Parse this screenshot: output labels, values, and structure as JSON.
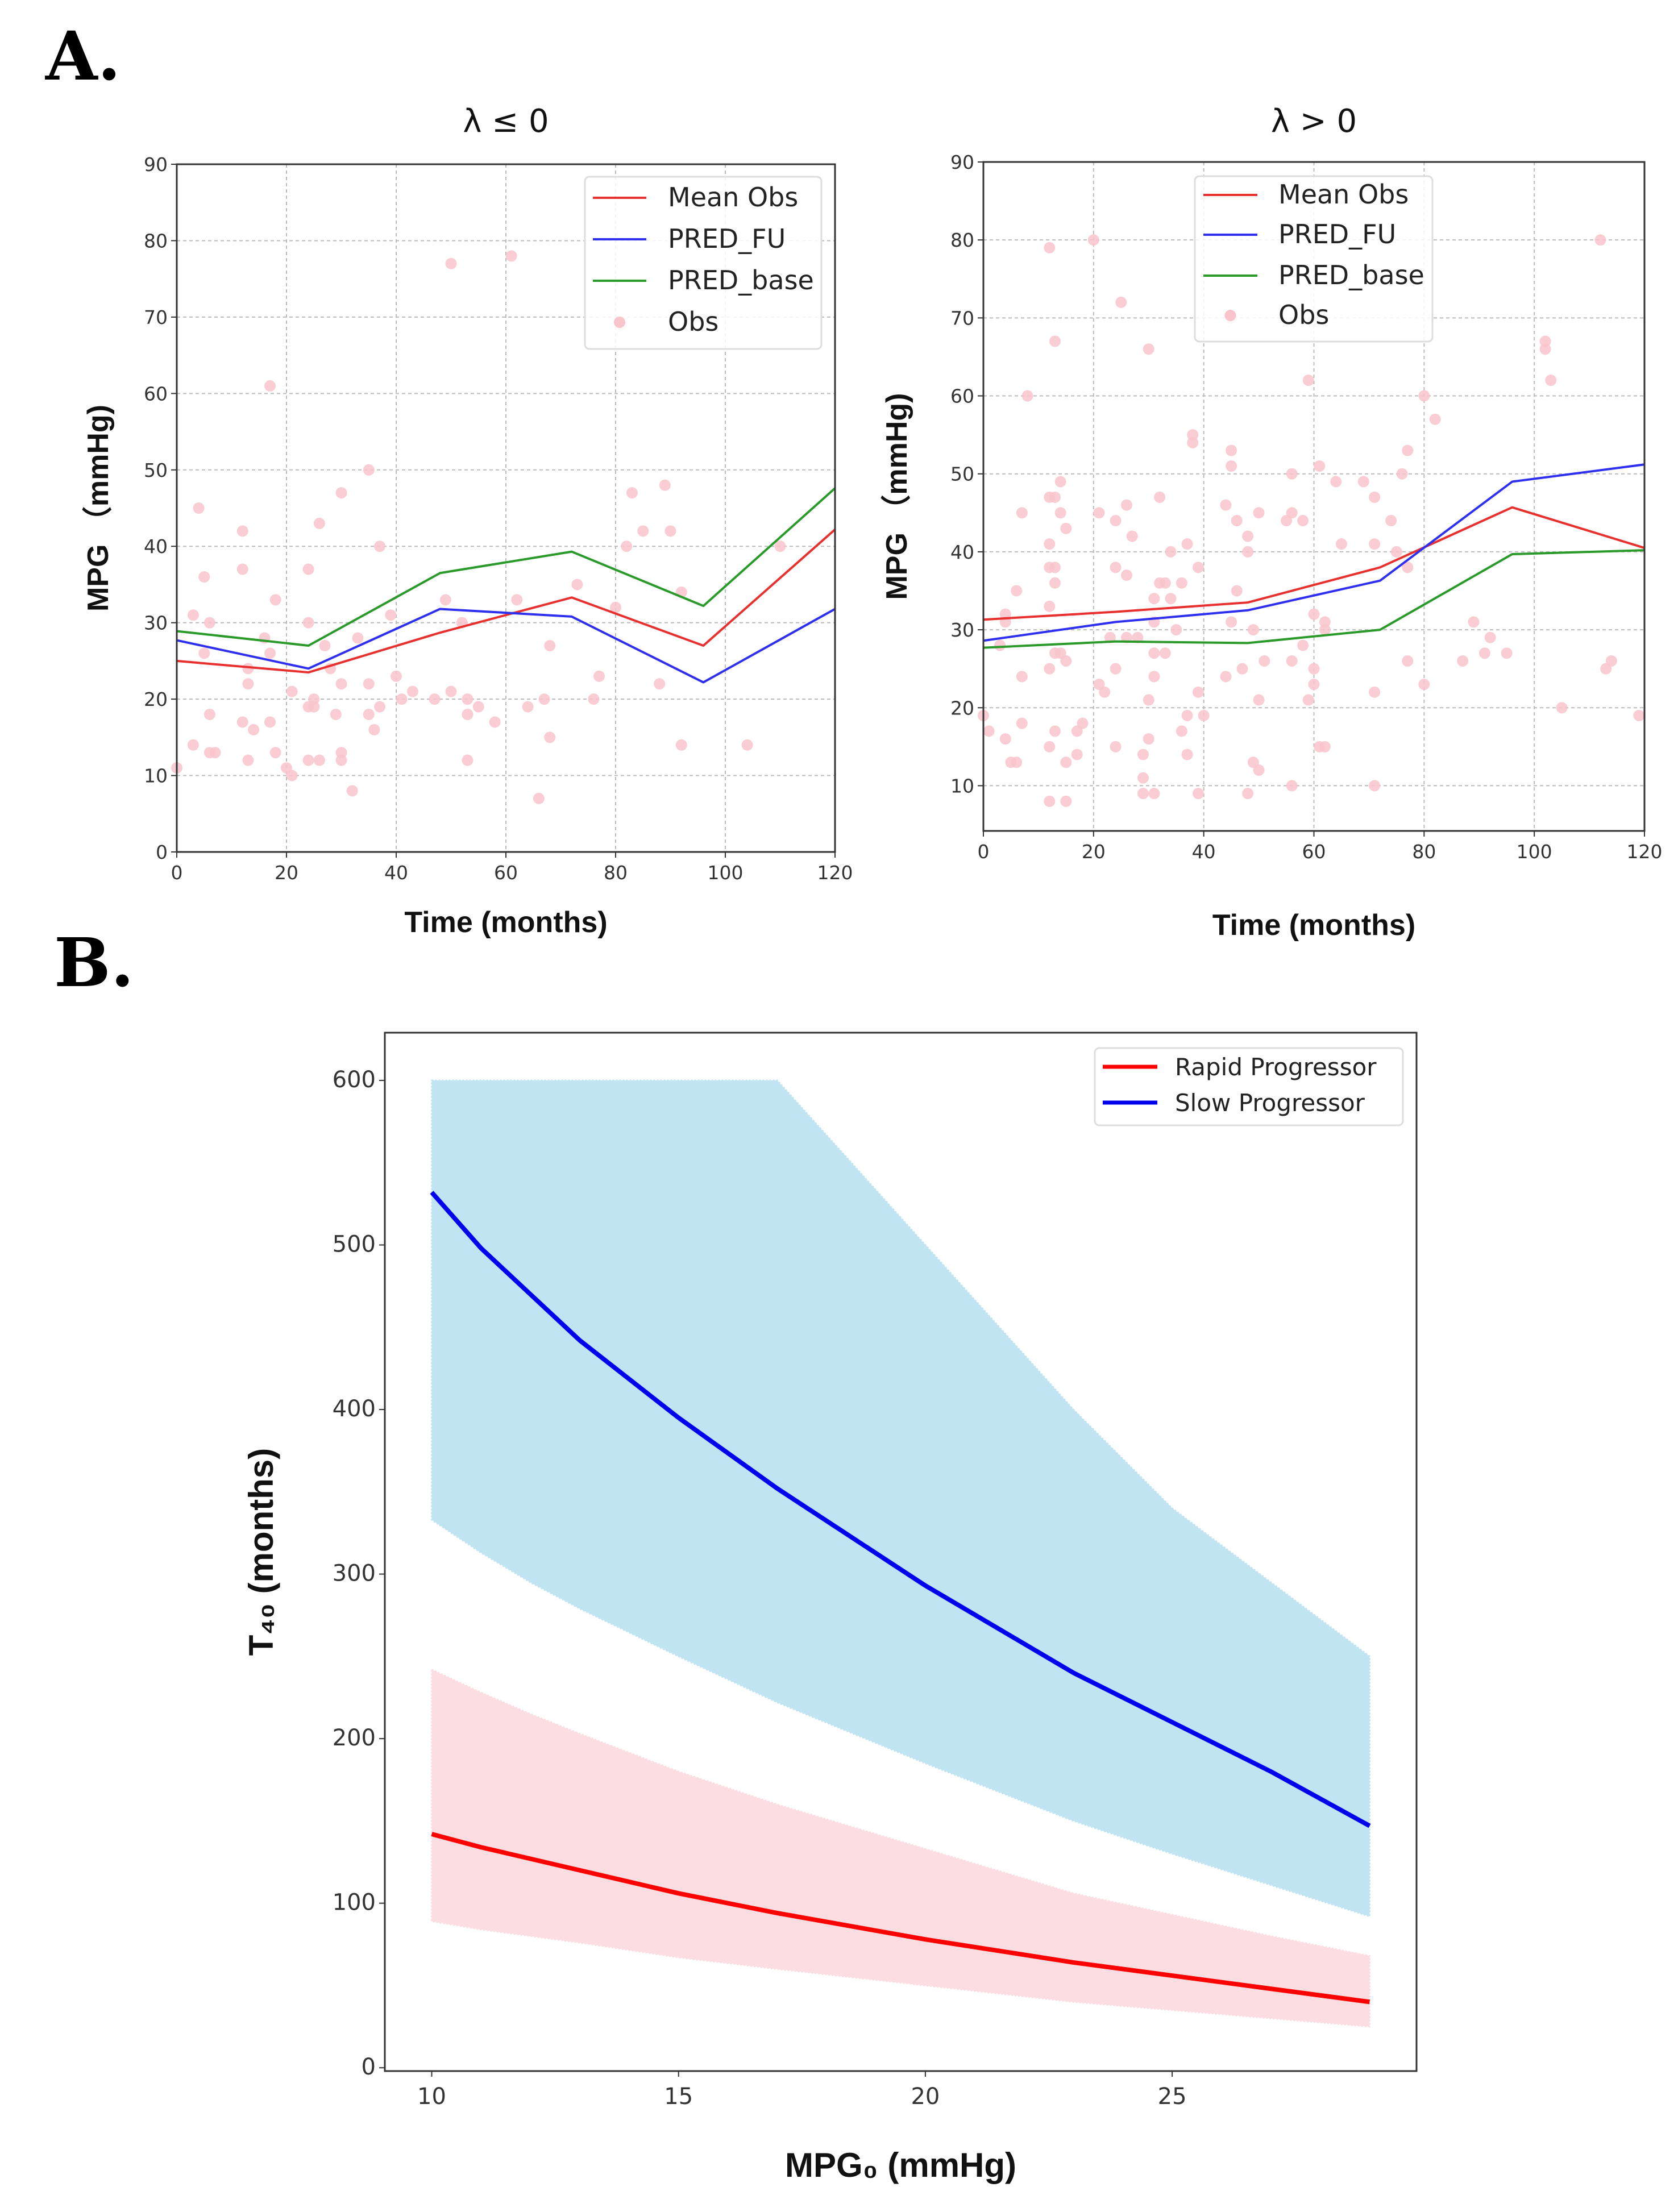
{
  "panel_labels": {
    "a": "A.",
    "b": "B."
  },
  "chart_data": [
    {
      "id": "a-left",
      "type": "line",
      "title": "λ ≤ 0",
      "xlabel": "Time (months)",
      "ylabel": "MPG （mmHg)",
      "xlim": [
        0,
        120
      ],
      "ylim": [
        0,
        90
      ],
      "xticks": [
        0,
        20,
        40,
        60,
        80,
        100,
        120
      ],
      "yticks": [
        0,
        10,
        20,
        30,
        40,
        50,
        60,
        70,
        80,
        90
      ],
      "grid": true,
      "legend_position": "top-right",
      "x": [
        0,
        24,
        48,
        72,
        96,
        120
      ],
      "series": [
        {
          "name": "Mean Obs",
          "color": "#e8312f",
          "values": [
            25,
            23.5,
            28.7,
            33.3,
            27,
            42.2
          ]
        },
        {
          "name": "PRED_FU",
          "color": "#2f2ff0",
          "values": [
            27.7,
            24,
            31.8,
            30.8,
            22.2,
            31.8
          ]
        },
        {
          "name": "PRED_base",
          "color": "#2a9a2a",
          "values": [
            28.9,
            27,
            36.5,
            39.3,
            32.2,
            47.6
          ]
        }
      ],
      "scatter": {
        "name": "Obs",
        "color": "#f9c4cc",
        "points": [
          [
            0,
            11
          ],
          [
            3,
            31
          ],
          [
            3,
            14
          ],
          [
            4,
            45
          ],
          [
            5,
            36
          ],
          [
            5,
            26
          ],
          [
            6,
            30
          ],
          [
            6,
            18
          ],
          [
            6,
            13
          ],
          [
            7,
            13
          ],
          [
            12,
            42
          ],
          [
            12,
            37
          ],
          [
            12,
            17
          ],
          [
            13,
            22
          ],
          [
            13,
            12
          ],
          [
            13,
            24
          ],
          [
            14,
            16
          ],
          [
            16,
            28
          ],
          [
            17,
            26
          ],
          [
            17,
            17
          ],
          [
            17,
            61
          ],
          [
            18,
            33
          ],
          [
            18,
            13
          ],
          [
            20,
            11
          ],
          [
            21,
            21
          ],
          [
            21,
            10
          ],
          [
            24,
            37
          ],
          [
            24,
            30
          ],
          [
            24,
            19
          ],
          [
            24,
            12
          ],
          [
            25,
            20
          ],
          [
            25,
            19
          ],
          [
            26,
            12
          ],
          [
            26,
            43
          ],
          [
            27,
            27
          ],
          [
            28,
            24
          ],
          [
            30,
            47
          ],
          [
            30,
            22
          ],
          [
            30,
            13
          ],
          [
            30,
            12
          ],
          [
            29,
            18
          ],
          [
            32,
            8
          ],
          [
            33,
            28
          ],
          [
            35,
            50
          ],
          [
            35,
            22
          ],
          [
            35,
            18
          ],
          [
            36,
            16
          ],
          [
            37,
            19
          ],
          [
            37,
            40
          ],
          [
            39,
            31
          ],
          [
            40,
            23
          ],
          [
            41,
            20
          ],
          [
            43,
            21
          ],
          [
            47,
            20
          ],
          [
            49,
            33
          ],
          [
            50,
            77
          ],
          [
            50,
            21
          ],
          [
            52,
            30
          ],
          [
            53,
            20
          ],
          [
            53,
            18
          ],
          [
            53,
            12
          ],
          [
            55,
            19
          ],
          [
            58,
            17
          ],
          [
            61,
            78
          ],
          [
            62,
            33
          ],
          [
            64,
            19
          ],
          [
            66,
            7
          ],
          [
            67,
            20
          ],
          [
            68,
            27
          ],
          [
            68,
            15
          ],
          [
            73,
            35
          ],
          [
            76,
            20
          ],
          [
            77,
            23
          ],
          [
            80,
            32
          ],
          [
            81,
            69
          ],
          [
            82,
            40
          ],
          [
            83,
            47
          ],
          [
            85,
            42
          ],
          [
            88,
            22
          ],
          [
            89,
            48
          ],
          [
            90,
            42
          ],
          [
            92,
            34
          ],
          [
            92,
            14
          ],
          [
            104,
            14
          ],
          [
            110,
            40
          ]
        ]
      }
    },
    {
      "id": "a-right",
      "type": "line",
      "title": "λ > 0",
      "xlabel": "Time (months)",
      "ylabel": "MPG （mmHg)",
      "xlim": [
        0,
        120
      ],
      "ylim": [
        4.2,
        90
      ],
      "xticks": [
        0,
        20,
        40,
        60,
        80,
        100,
        120
      ],
      "yticks": [
        10,
        20,
        30,
        40,
        50,
        60,
        70,
        80,
        90
      ],
      "grid": true,
      "legend_position": "top-center",
      "x": [
        0,
        24,
        48,
        72,
        96,
        120
      ],
      "series": [
        {
          "name": "Mean Obs",
          "color": "#e8312f",
          "values": [
            31.3,
            32.3,
            33.5,
            38,
            45.7,
            40.5
          ]
        },
        {
          "name": "PRED_FU",
          "color": "#2f2ff0",
          "values": [
            28.6,
            31,
            32.5,
            36.3,
            49,
            51.2
          ]
        },
        {
          "name": "PRED_base",
          "color": "#2a9a2a",
          "values": [
            27.7,
            28.5,
            28.3,
            30,
            39.7,
            40.2
          ]
        }
      ],
      "scatter": {
        "name": "Obs",
        "color": "#f9c4cc",
        "points": [
          [
            0,
            19
          ],
          [
            1,
            17
          ],
          [
            4,
            32
          ],
          [
            4,
            31
          ],
          [
            3,
            28
          ],
          [
            4,
            16
          ],
          [
            5,
            13
          ],
          [
            6,
            13
          ],
          [
            6,
            35
          ],
          [
            7,
            45
          ],
          [
            7,
            24
          ],
          [
            7,
            18
          ],
          [
            8,
            60
          ],
          [
            12,
            79
          ],
          [
            12,
            47
          ],
          [
            12,
            41
          ],
          [
            12,
            38
          ],
          [
            12,
            33
          ],
          [
            12,
            25
          ],
          [
            12,
            15
          ],
          [
            12,
            8
          ],
          [
            13,
            67
          ],
          [
            13,
            47
          ],
          [
            13,
            38
          ],
          [
            13,
            36
          ],
          [
            13,
            27
          ],
          [
            13,
            17
          ],
          [
            14,
            45
          ],
          [
            14,
            49
          ],
          [
            14,
            27
          ],
          [
            15,
            43
          ],
          [
            15,
            26
          ],
          [
            15,
            13
          ],
          [
            15,
            8
          ],
          [
            17,
            17
          ],
          [
            17,
            14
          ],
          [
            18,
            18
          ],
          [
            20,
            80
          ],
          [
            21,
            45
          ],
          [
            21,
            23
          ],
          [
            22,
            22
          ],
          [
            23,
            29
          ],
          [
            24,
            25
          ],
          [
            24,
            38
          ],
          [
            24,
            44
          ],
          [
            24,
            15
          ],
          [
            25,
            72
          ],
          [
            26,
            46
          ],
          [
            26,
            29
          ],
          [
            26,
            37
          ],
          [
            27,
            42
          ],
          [
            28,
            29
          ],
          [
            29,
            14
          ],
          [
            29,
            11
          ],
          [
            29,
            9
          ],
          [
            30,
            21
          ],
          [
            30,
            16
          ],
          [
            30,
            66
          ],
          [
            31,
            34
          ],
          [
            31,
            31
          ],
          [
            31,
            27
          ],
          [
            31,
            24
          ],
          [
            31,
            9
          ],
          [
            32,
            47
          ],
          [
            32,
            36
          ],
          [
            33,
            36
          ],
          [
            33,
            27
          ],
          [
            34,
            34
          ],
          [
            34,
            40
          ],
          [
            35,
            30
          ],
          [
            36,
            17
          ],
          [
            36,
            36
          ],
          [
            37,
            41
          ],
          [
            37,
            19
          ],
          [
            37,
            14
          ],
          [
            38,
            55
          ],
          [
            38,
            54
          ],
          [
            39,
            22
          ],
          [
            39,
            38
          ],
          [
            39,
            9
          ],
          [
            40,
            19
          ],
          [
            44,
            46
          ],
          [
            44,
            24
          ],
          [
            45,
            31
          ],
          [
            45,
            70
          ],
          [
            45,
            53
          ],
          [
            45,
            51
          ],
          [
            46,
            44
          ],
          [
            46,
            35
          ],
          [
            47,
            25
          ],
          [
            48,
            40
          ],
          [
            48,
            42
          ],
          [
            48,
            9
          ],
          [
            49,
            13
          ],
          [
            49,
            30
          ],
          [
            50,
            45
          ],
          [
            50,
            21
          ],
          [
            50,
            12
          ],
          [
            51,
            26
          ],
          [
            55,
            44
          ],
          [
            56,
            45
          ],
          [
            56,
            26
          ],
          [
            56,
            10
          ],
          [
            56,
            50
          ],
          [
            58,
            28
          ],
          [
            58,
            44
          ],
          [
            59,
            62
          ],
          [
            59,
            21
          ],
          [
            60,
            32
          ],
          [
            60,
            25
          ],
          [
            60,
            23
          ],
          [
            61,
            15
          ],
          [
            61,
            51
          ],
          [
            62,
            15
          ],
          [
            62,
            31
          ],
          [
            62,
            30
          ],
          [
            64,
            49
          ],
          [
            65,
            41
          ],
          [
            69,
            49
          ],
          [
            71,
            41
          ],
          [
            71,
            47
          ],
          [
            71,
            22
          ],
          [
            71,
            10
          ],
          [
            74,
            44
          ],
          [
            75,
            40
          ],
          [
            76,
            50
          ],
          [
            77,
            53
          ],
          [
            77,
            38
          ],
          [
            77,
            26
          ],
          [
            80,
            60
          ],
          [
            80,
            23
          ],
          [
            82,
            57
          ],
          [
            87,
            26
          ],
          [
            89,
            31
          ],
          [
            91,
            27
          ],
          [
            92,
            29
          ],
          [
            95,
            27
          ],
          [
            102,
            67
          ],
          [
            102,
            66
          ],
          [
            103,
            62
          ],
          [
            105,
            20
          ],
          [
            112,
            80
          ],
          [
            113,
            25
          ],
          [
            114,
            26
          ],
          [
            119,
            19
          ]
        ]
      }
    },
    {
      "id": "b",
      "type": "line",
      "title": "",
      "xlabel": "MPG₀ (mmHg)",
      "ylabel": "T₄₀ (months)",
      "xlim": [
        9.05,
        29.95
      ],
      "ylim": [
        -2,
        629
      ],
      "xticks": [
        10,
        15,
        20,
        25
      ],
      "yticks": [
        0,
        100,
        200,
        300,
        400,
        500,
        600
      ],
      "grid": false,
      "legend_position": "top-right",
      "x": [
        10,
        11,
        12,
        13,
        15,
        17,
        20,
        23,
        25,
        27,
        29
      ],
      "series": [
        {
          "name": "Rapid Progressor",
          "color": "#ff0000",
          "band_color": "#fcdde2",
          "values": [
            142,
            134,
            127,
            120,
            106,
            94,
            78,
            64,
            56,
            48,
            40
          ],
          "lower": [
            89,
            84,
            80,
            76,
            67,
            60,
            50,
            40,
            35,
            30,
            25
          ],
          "upper": [
            242,
            228,
            215,
            203,
            180,
            160,
            133,
            106,
            93,
            80,
            68
          ]
        },
        {
          "name": "Slow Progressor",
          "color": "#0000ee",
          "band_color": "#c0e4f2",
          "values": [
            532,
            498,
            470,
            442,
            395,
            352,
            293,
            240,
            210,
            180,
            147
          ],
          "lower": [
            333,
            313,
            295,
            279,
            250,
            222,
            185,
            150,
            130,
            111,
            92
          ],
          "upper": [
            600,
            600,
            600,
            600,
            600,
            600,
            500,
            400,
            340,
            295,
            250
          ]
        }
      ]
    }
  ]
}
